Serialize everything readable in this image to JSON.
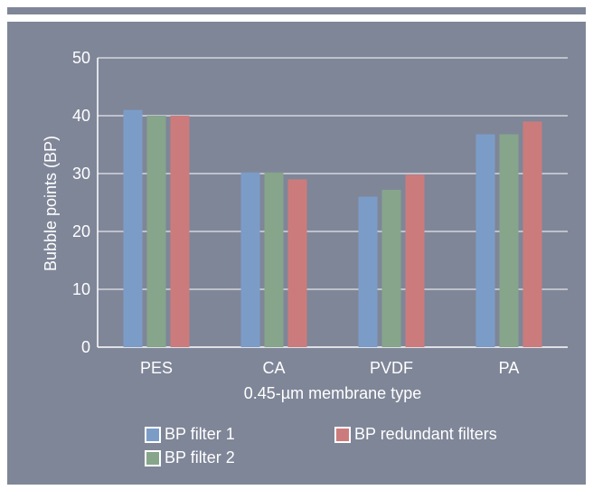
{
  "chart_data": {
    "type": "bar",
    "categories": [
      "PES",
      "CA",
      "PVDF",
      "PA"
    ],
    "series": [
      {
        "name": "BP filter 1",
        "values": [
          41,
          30.2,
          26,
          36.8
        ],
        "color": "#7c9cc8"
      },
      {
        "name": "BP filter 2",
        "values": [
          40,
          30.2,
          27.2,
          36.8
        ],
        "color": "#86a58b"
      },
      {
        "name": "BP redundant filters",
        "values": [
          40,
          29,
          29.8,
          39
        ],
        "color": "#cc7b7c"
      }
    ],
    "xlabel": "0.45-µm membrane type",
    "ylabel": "Bubble points (BP)",
    "ylim": [
      0,
      50
    ],
    "yticks": [
      0,
      10,
      20,
      30,
      40,
      50
    ],
    "grid": true,
    "legend": "bottom",
    "colors": {
      "panel": "#7f8698",
      "plot_area": "#7f8698",
      "gridline": "#ffffff",
      "text": "#ffffff"
    }
  }
}
